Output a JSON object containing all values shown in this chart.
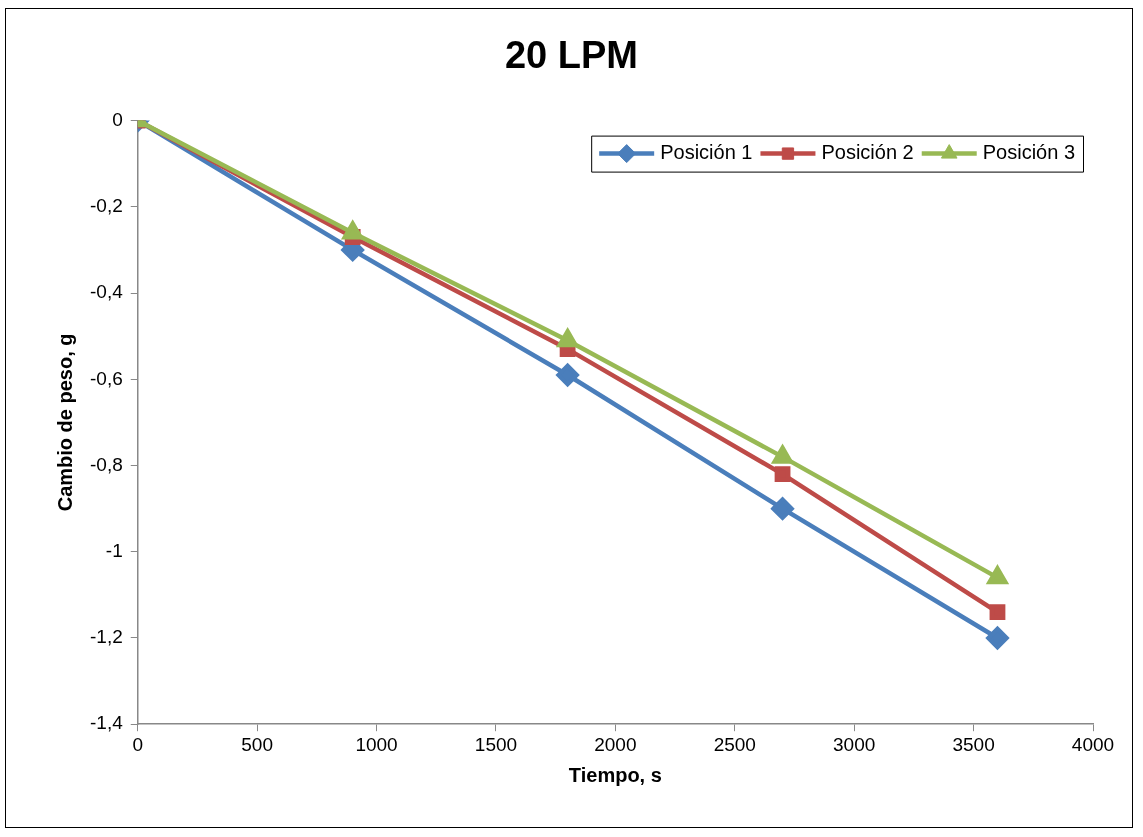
{
  "chart_data": {
    "type": "line",
    "title": "20 LPM",
    "xlabel": "Tiempo, s",
    "ylabel": "Cambio de peso, g",
    "x": [
      0,
      900,
      1800,
      2700,
      3600
    ],
    "series": [
      {
        "name": "Posición 1",
        "color": "#4a7ebb",
        "marker": "diamond",
        "values": [
          0,
          -0.3,
          -0.59,
          -0.9,
          -1.2
        ]
      },
      {
        "name": "Posición 2",
        "color": "#be4b48",
        "marker": "square",
        "values": [
          0,
          -0.27,
          -0.53,
          -0.82,
          -1.14
        ]
      },
      {
        "name": "Posición 3",
        "color": "#98b954",
        "marker": "triangle",
        "values": [
          0,
          -0.26,
          -0.51,
          -0.78,
          -1.06
        ]
      }
    ],
    "xlim": [
      0,
      4000
    ],
    "xticks": [
      0,
      500,
      1000,
      1500,
      2000,
      2500,
      3000,
      3500,
      4000
    ],
    "ylim": [
      -1.4,
      0
    ],
    "yticks": [
      {
        "value": 0,
        "label": "0"
      },
      {
        "value": -0.2,
        "label": "-0,2"
      },
      {
        "value": -0.4,
        "label": "-0,4"
      },
      {
        "value": -0.6,
        "label": "-0,6"
      },
      {
        "value": -0.8,
        "label": "-0,8"
      },
      {
        "value": -1,
        "label": "-1"
      },
      {
        "value": -1.2,
        "label": "-1,2"
      },
      {
        "value": -1.4,
        "label": "-1,4"
      }
    ],
    "grid": false,
    "legend": "top right",
    "line_style": "solid"
  }
}
